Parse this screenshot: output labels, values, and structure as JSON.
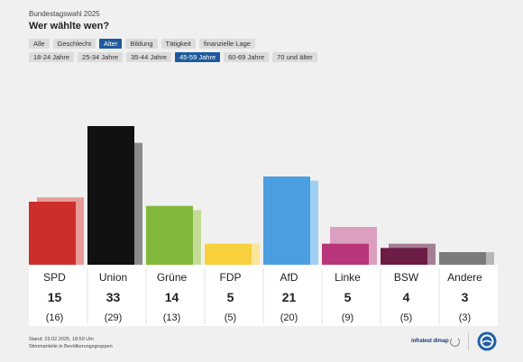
{
  "header": {
    "kicker": "Bundestagswahl 2025",
    "title": "Wer wählte wen?"
  },
  "filters": {
    "categories": [
      {
        "label": "Alle",
        "active": false
      },
      {
        "label": "Geschlecht",
        "active": false
      },
      {
        "label": "Alter",
        "active": true
      },
      {
        "label": "Bildung",
        "active": false
      },
      {
        "label": "Tätigkeit",
        "active": false
      },
      {
        "label": "finanzielle Lage",
        "active": false
      }
    ],
    "age_groups": [
      {
        "label": "18-24 Jahre",
        "active": false
      },
      {
        "label": "25-34 Jahre",
        "active": false
      },
      {
        "label": "35-44 Jahre",
        "active": false
      },
      {
        "label": "45-59 Jahre",
        "active": true
      },
      {
        "label": "60-69 Jahre",
        "active": false
      },
      {
        "label": "70 und älter",
        "active": false
      }
    ]
  },
  "chart_data": {
    "type": "bar",
    "categories": [
      "SPD",
      "Union",
      "Grüne",
      "FDP",
      "AfD",
      "Linke",
      "BSW",
      "Andere"
    ],
    "series": [
      {
        "values": [
          15,
          33,
          14,
          5,
          21,
          5,
          4,
          3
        ]
      },
      {
        "values": [
          16,
          29,
          13,
          5,
          20,
          9,
          5,
          3
        ]
      }
    ],
    "value_labels": [
      "15",
      "33",
      "14",
      "5",
      "21",
      "5",
      "4",
      "3"
    ],
    "previous_labels": [
      "(16)",
      "(29)",
      "(13)",
      "(5)",
      "(20)",
      "(9)",
      "(5)",
      "(3)"
    ],
    "colors": [
      "#cc2f2b",
      "#111111",
      "#82b83c",
      "#f8d03e",
      "#4b9ee0",
      "#b8357a",
      "#6b1d45",
      "#7a7a7a"
    ],
    "previous_colors": [
      "#e79a96",
      "#8a8a8a",
      "#c3dc97",
      "#fbe79a",
      "#9fd0f1",
      "#dba0c0",
      "#a57e93",
      "#b7b7b7"
    ],
    "ylim": [
      0,
      35
    ],
    "grid": false,
    "legend": "none"
  },
  "footer": {
    "date": "Stand: 23.02.2025, 18:59 Uhr",
    "note": "Stimmanteile in Bevölkerungsgruppen",
    "source": "infratest dimap",
    "logo_icon": "tagesschau-logo-icon",
    "source_icon": "refresh-icon"
  }
}
